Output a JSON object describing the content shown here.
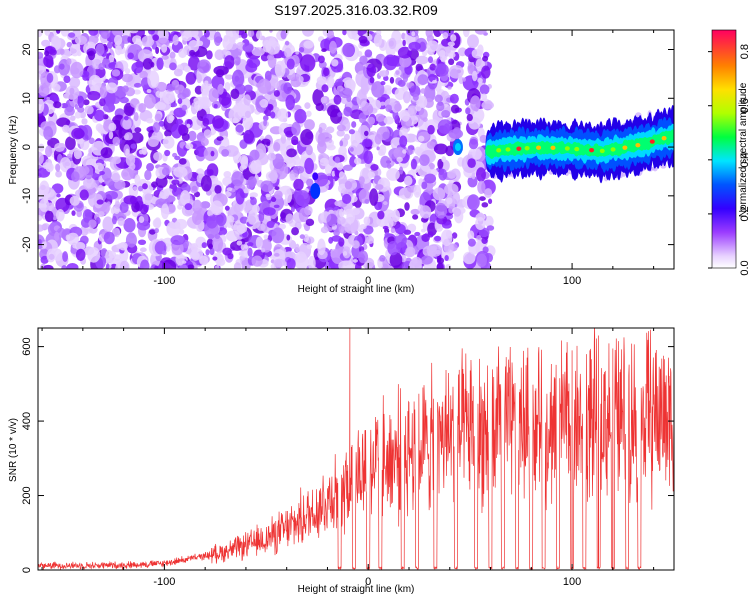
{
  "title": "S197.2025.316.03.32.R09",
  "chart_data": [
    {
      "type": "heatmap",
      "xlabel": "Height of straight line (km)",
      "ylabel": "Frequency (Hz)",
      "xlim": [
        -162,
        150
      ],
      "ylim": [
        -25,
        24
      ],
      "x_ticks": [
        -100,
        0,
        100
      ],
      "y_ticks": [
        -20,
        -10,
        0,
        10,
        20
      ],
      "noise_region": {
        "x_range": [
          -162,
          60
        ],
        "freq_range": [
          -25,
          24
        ]
      },
      "signal_band": {
        "x": [
          59,
          65,
          75,
          85,
          95,
          105,
          115,
          125,
          135,
          145,
          150
        ],
        "freq": [
          -1.0,
          -0.6,
          -0.3,
          -0.1,
          -0.2,
          -0.5,
          -0.8,
          -0.2,
          0.6,
          1.8,
          2.2
        ]
      },
      "colorbar": {
        "label": "Normalized spectral amplitude",
        "range": [
          0.0,
          0.88
        ],
        "ticks": [
          0.0,
          0.2,
          0.4,
          0.6,
          0.8
        ]
      }
    },
    {
      "type": "line",
      "xlabel": "Height of straight line (km)",
      "ylabel": "SNR (10 * v/v)",
      "xlim": [
        -162,
        150
      ],
      "ylim": [
        0,
        650
      ],
      "x_ticks": [
        -100,
        0,
        100
      ],
      "y_ticks": [
        0,
        200,
        400,
        600
      ],
      "series": [
        {
          "name": "SNR",
          "color": "#ee3333",
          "x": [
            -162,
            -140,
            -120,
            -100,
            -90,
            -80,
            -70,
            -60,
            -50,
            -40,
            -30,
            -20,
            -15,
            -10,
            -5,
            0,
            5,
            10,
            20,
            30,
            35,
            40,
            50,
            60,
            70,
            80,
            90,
            100,
            110,
            120,
            130,
            140,
            150
          ],
          "y": [
            12,
            12,
            13,
            18,
            28,
            38,
            50,
            65,
            85,
            110,
            145,
            190,
            220,
            240,
            260,
            280,
            290,
            300,
            320,
            340,
            350,
            360,
            370,
            380,
            385,
            390,
            395,
            400,
            405,
            410,
            415,
            420,
            420
          ],
          "spikes": [
            {
              "x": -9,
              "y": 650
            },
            {
              "x": 100,
              "y": 590
            },
            {
              "x": 113,
              "y": 630
            },
            {
              "x": 120,
              "y": 595
            }
          ],
          "dropouts": [
            -14,
            -7,
            0,
            6,
            17,
            24,
            33,
            43,
            53,
            60,
            66,
            73,
            80,
            86,
            93,
            100,
            106,
            113,
            120,
            127,
            133
          ]
        }
      ]
    }
  ]
}
